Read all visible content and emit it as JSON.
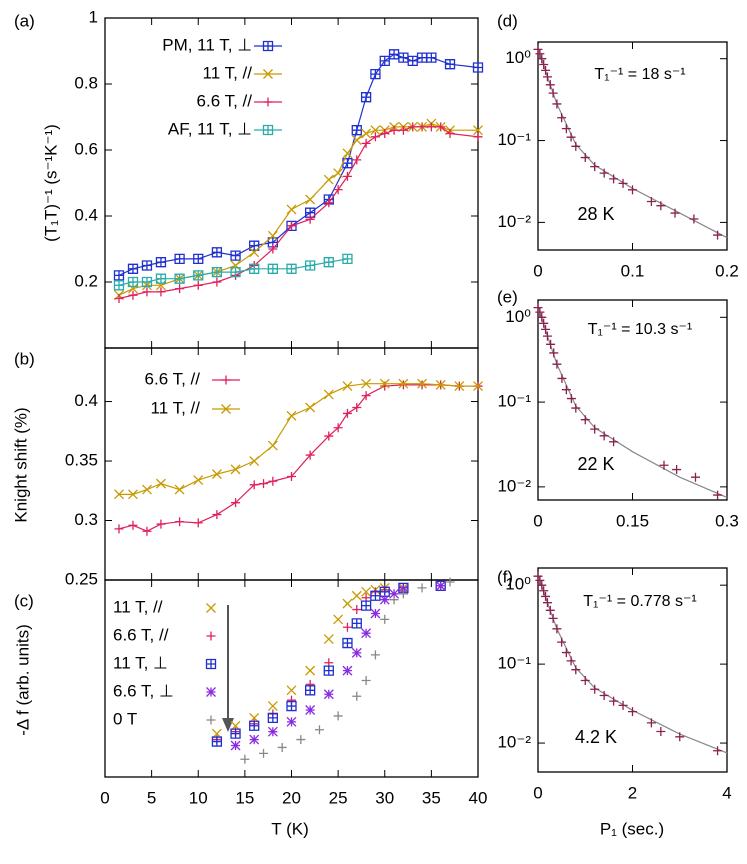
{
  "chart_data": [
    {
      "type": "line",
      "label": "(a)",
      "ylabel": "(T₁T)⁻¹ (s⁻¹K⁻¹)",
      "xlim": [
        0,
        40
      ],
      "ylim": [
        0,
        1
      ],
      "yticks": [
        0.2,
        0.4,
        0.6,
        0.8,
        1
      ],
      "series": [
        {
          "name": "PM, 11 T, ⊥",
          "color": "#1f2fd0",
          "marker": "boxplus",
          "x": [
            1.5,
            3,
            4.5,
            6,
            8,
            10,
            12,
            14,
            16,
            18,
            20,
            22,
            24,
            26,
            27,
            28,
            29,
            30,
            31,
            32,
            33,
            34,
            35,
            37,
            40
          ],
          "values": [
            0.22,
            0.24,
            0.25,
            0.26,
            0.27,
            0.27,
            0.29,
            0.28,
            0.31,
            0.32,
            0.37,
            0.41,
            0.45,
            0.56,
            0.66,
            0.76,
            0.83,
            0.87,
            0.89,
            0.88,
            0.87,
            0.88,
            0.88,
            0.86,
            0.85
          ]
        },
        {
          "name": "11 T, //",
          "color": "#c89a00",
          "marker": "x",
          "x": [
            1.5,
            3,
            4.5,
            6,
            8,
            10,
            12,
            14,
            16,
            18,
            20,
            22,
            24,
            25,
            26,
            27,
            28,
            29,
            30,
            31,
            32,
            33,
            34,
            35,
            36,
            37,
            40
          ],
          "values": [
            0.16,
            0.18,
            0.19,
            0.19,
            0.21,
            0.22,
            0.23,
            0.25,
            0.29,
            0.34,
            0.42,
            0.45,
            0.51,
            0.53,
            0.59,
            0.63,
            0.65,
            0.66,
            0.66,
            0.67,
            0.67,
            0.67,
            0.67,
            0.68,
            0.67,
            0.66,
            0.66
          ]
        },
        {
          "name": "6.6 T, //",
          "color": "#e0205a",
          "marker": "plus",
          "x": [
            1.5,
            3,
            4.5,
            6,
            8,
            10,
            12,
            14,
            16,
            18,
            20,
            22,
            24,
            25,
            26,
            27,
            28,
            29,
            30,
            31,
            32,
            33,
            34,
            35,
            36,
            37,
            40
          ],
          "values": [
            0.15,
            0.16,
            0.17,
            0.17,
            0.18,
            0.19,
            0.2,
            0.22,
            0.25,
            0.3,
            0.37,
            0.39,
            0.44,
            0.48,
            0.52,
            0.57,
            0.62,
            0.64,
            0.65,
            0.66,
            0.66,
            0.67,
            0.67,
            0.67,
            0.67,
            0.65,
            0.64
          ]
        },
        {
          "name": "AF, 11 T, ⊥",
          "color": "#2aacac",
          "marker": "boxplus",
          "x": [
            1.5,
            3,
            4.5,
            6,
            8,
            10,
            12,
            14,
            16,
            18,
            20,
            22,
            24,
            26
          ],
          "values": [
            0.19,
            0.2,
            0.2,
            0.21,
            0.21,
            0.22,
            0.23,
            0.23,
            0.24,
            0.24,
            0.24,
            0.25,
            0.26,
            0.27
          ]
        }
      ]
    },
    {
      "type": "line",
      "label": "(b)",
      "ylabel": "Knight shift (%)",
      "xlim": [
        0,
        40
      ],
      "ylim": [
        0.25,
        0.445
      ],
      "yticks": [
        0.25,
        0.3,
        0.35,
        0.4
      ],
      "series": [
        {
          "name": "6.6 T, //",
          "color": "#e0205a",
          "marker": "plus",
          "x": [
            1.5,
            3,
            4.5,
            6,
            8,
            10,
            12,
            14,
            16,
            17,
            18,
            20,
            22,
            24,
            25,
            26,
            27,
            28,
            30,
            32,
            34,
            36,
            38,
            40
          ],
          "values": [
            0.293,
            0.296,
            0.291,
            0.297,
            0.299,
            0.298,
            0.305,
            0.315,
            0.33,
            0.331,
            0.333,
            0.337,
            0.355,
            0.371,
            0.378,
            0.39,
            0.395,
            0.405,
            0.413,
            0.414,
            0.414,
            0.414,
            0.413,
            0.413
          ]
        },
        {
          "name": "11 T, //",
          "color": "#c89a00",
          "marker": "x",
          "x": [
            1.5,
            3,
            4.5,
            6,
            8,
            10,
            12,
            14,
            16,
            18,
            20,
            22,
            24,
            26,
            28,
            30,
            32,
            34,
            36,
            38,
            40
          ],
          "values": [
            0.322,
            0.322,
            0.326,
            0.331,
            0.326,
            0.334,
            0.339,
            0.343,
            0.35,
            0.363,
            0.388,
            0.395,
            0.406,
            0.413,
            0.415,
            0.415,
            0.415,
            0.415,
            0.414,
            0.413,
            0.413
          ]
        }
      ]
    },
    {
      "type": "scatter",
      "label": "(c)",
      "ylabel": "-Δ f (arb. units)",
      "xlabel": "T (K)",
      "xlim": [
        0,
        40
      ],
      "ylim": [
        0,
        1
      ],
      "xticks": [
        0,
        5,
        10,
        15,
        20,
        25,
        30,
        35,
        40
      ],
      "series": [
        {
          "name": "11 T, //",
          "color": "#c89a00",
          "marker": "x",
          "x": [
            12,
            14,
            16,
            18,
            20,
            22,
            24,
            25,
            26,
            27,
            28,
            29,
            30,
            32,
            36
          ],
          "values": [
            0.22,
            0.26,
            0.3,
            0.36,
            0.44,
            0.54,
            0.7,
            0.8,
            0.88,
            0.92,
            0.94,
            0.95,
            0.96,
            0.96,
            0.97
          ]
        },
        {
          "name": "6.6 T, //",
          "color": "#e0205a",
          "marker": "plus",
          "x": [
            12,
            14,
            16,
            18,
            20,
            22,
            24,
            26,
            27,
            28,
            29,
            30,
            32,
            36
          ],
          "values": [
            0.19,
            0.23,
            0.27,
            0.32,
            0.39,
            0.47,
            0.58,
            0.76,
            0.85,
            0.91,
            0.94,
            0.95,
            0.96,
            0.97
          ]
        },
        {
          "name": "11 T, ⊥",
          "color": "#1f2fd0",
          "marker": "boxplus",
          "x": [
            12,
            14,
            16,
            18,
            20,
            22,
            24,
            26,
            27,
            28,
            29,
            30,
            32,
            36
          ],
          "values": [
            0.18,
            0.22,
            0.26,
            0.3,
            0.36,
            0.44,
            0.54,
            0.68,
            0.78,
            0.87,
            0.92,
            0.94,
            0.96,
            0.97
          ]
        },
        {
          "name": "6.6 T, ⊥",
          "color": "#8a2be2",
          "marker": "star",
          "x": [
            14,
            16,
            18,
            20,
            22,
            24,
            26,
            27,
            28,
            29,
            30,
            31,
            32,
            36
          ],
          "values": [
            0.16,
            0.19,
            0.23,
            0.28,
            0.34,
            0.42,
            0.54,
            0.63,
            0.73,
            0.83,
            0.9,
            0.93,
            0.95,
            0.97
          ]
        },
        {
          "name": "0 T",
          "color": "#888888",
          "marker": "plus",
          "x": [
            15,
            17,
            19,
            21,
            23,
            25,
            27,
            28,
            29,
            30,
            31,
            32,
            34,
            37
          ],
          "values": [
            0.09,
            0.12,
            0.15,
            0.19,
            0.24,
            0.31,
            0.41,
            0.49,
            0.62,
            0.8,
            0.9,
            0.93,
            0.96,
            0.99
          ]
        }
      ]
    },
    {
      "type": "scatter",
      "label": "(d)",
      "annotation": "T₁⁻¹ = 18 s⁻¹",
      "temperature": "28 K",
      "log_y": true,
      "xlim": [
        0,
        0.2
      ],
      "xticks": [
        0,
        0.1,
        0.2
      ],
      "ylim": [
        0.0046,
        1.6
      ],
      "yticks": [
        {
          "value": 1,
          "label": "10⁰"
        },
        {
          "value": 0.1,
          "label": "10⁻¹"
        },
        {
          "value": 0.01,
          "label": "10⁻²"
        }
      ],
      "series": [
        {
          "color": "#8a2050",
          "marker": "plus",
          "x": [
            0,
            0.002,
            0.004,
            0.006,
            0.008,
            0.01,
            0.013,
            0.016,
            0.02,
            0.025,
            0.03,
            0.035,
            0.04,
            0.05,
            0.06,
            0.07,
            0.08,
            0.09,
            0.1,
            0.12,
            0.13,
            0.145,
            0.165,
            0.19
          ],
          "values": [
            1.3,
            1.15,
            1.0,
            0.85,
            0.72,
            0.6,
            0.48,
            0.38,
            0.28,
            0.19,
            0.14,
            0.11,
            0.085,
            0.062,
            0.048,
            0.04,
            0.034,
            0.03,
            0.025,
            0.018,
            0.016,
            0.013,
            0.011,
            0.007
          ]
        }
      ],
      "fit": {
        "color": "#888888",
        "x": [
          0,
          0.01,
          0.02,
          0.04,
          0.06,
          0.1,
          0.15,
          0.2
        ],
        "values": [
          1.35,
          0.6,
          0.28,
          0.09,
          0.05,
          0.026,
          0.013,
          0.0065
        ]
      }
    },
    {
      "type": "scatter",
      "label": "(e)",
      "annotation": "T₁⁻¹ = 10.3 s⁻¹",
      "temperature": "22 K",
      "log_y": true,
      "xlim": [
        0,
        0.3
      ],
      "xticks": [
        0,
        0.15,
        0.3
      ],
      "ylim": [
        0.007,
        1.6
      ],
      "yticks": [
        {
          "value": 1,
          "label": "10⁰"
        },
        {
          "value": 0.1,
          "label": "10⁻¹"
        },
        {
          "value": 0.01,
          "label": "10⁻²"
        }
      ],
      "series": [
        {
          "color": "#8a2050",
          "marker": "plus",
          "x": [
            0,
            0.003,
            0.006,
            0.009,
            0.012,
            0.015,
            0.02,
            0.025,
            0.03,
            0.038,
            0.045,
            0.053,
            0.06,
            0.075,
            0.09,
            0.105,
            0.12,
            0.2,
            0.22,
            0.25,
            0.285
          ],
          "values": [
            1.3,
            1.15,
            1.0,
            0.85,
            0.72,
            0.6,
            0.48,
            0.38,
            0.28,
            0.19,
            0.14,
            0.11,
            0.085,
            0.062,
            0.048,
            0.04,
            0.034,
            0.018,
            0.016,
            0.013,
            0.008
          ]
        }
      ],
      "fit": {
        "color": "#888888",
        "x": [
          0,
          0.015,
          0.03,
          0.06,
          0.09,
          0.15,
          0.225,
          0.3
        ],
        "values": [
          1.35,
          0.6,
          0.28,
          0.09,
          0.05,
          0.026,
          0.013,
          0.0075
        ]
      }
    },
    {
      "type": "scatter",
      "label": "(f)",
      "annotation": "T₁⁻¹ = 0.778 s⁻¹",
      "temperature": "4.2 K",
      "xlabel": "P₁ (sec.)",
      "log_y": true,
      "xlim": [
        0,
        4
      ],
      "xticks": [
        0,
        2,
        4
      ],
      "ylim": [
        0.0043,
        1.65
      ],
      "yticks": [
        {
          "value": 1,
          "label": "10⁰"
        },
        {
          "value": 0.1,
          "label": "10⁻¹"
        },
        {
          "value": 0.01,
          "label": "10⁻²"
        }
      ],
      "series": [
        {
          "color": "#8a2050",
          "marker": "plus",
          "x": [
            0,
            0.04,
            0.08,
            0.12,
            0.16,
            0.2,
            0.26,
            0.32,
            0.4,
            0.5,
            0.6,
            0.7,
            0.8,
            1.0,
            1.2,
            1.4,
            1.6,
            1.8,
            2.0,
            2.4,
            2.6,
            3.0,
            3.8
          ],
          "values": [
            1.3,
            1.15,
            1.0,
            0.85,
            0.72,
            0.6,
            0.48,
            0.38,
            0.28,
            0.19,
            0.14,
            0.11,
            0.085,
            0.062,
            0.048,
            0.04,
            0.034,
            0.03,
            0.025,
            0.018,
            0.014,
            0.012,
            0.008
          ]
        }
      ],
      "fit": {
        "color": "#888888",
        "x": [
          0,
          0.2,
          0.4,
          0.8,
          1.2,
          2,
          3,
          4
        ],
        "values": [
          1.35,
          0.6,
          0.28,
          0.09,
          0.05,
          0.026,
          0.013,
          0.0075
        ]
      }
    }
  ]
}
